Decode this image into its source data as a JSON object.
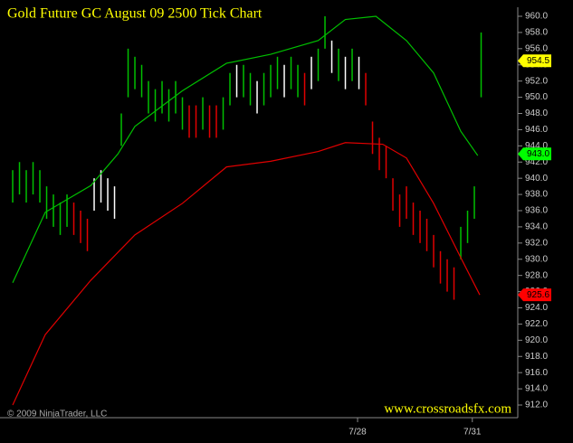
{
  "chart_data": {
    "type": "ohlc",
    "title": "Gold Future GC August 09 2500 Tick Chart",
    "copyright": "© 2009 NinjaTrader, LLC",
    "watermark": "www.crossroadsfx.com",
    "xlim": [
      -1.87,
      74.13
    ],
    "xticks": [
      {
        "value": 50.8,
        "label": "7/28"
      },
      {
        "value": 67.7,
        "label": "7/31"
      }
    ],
    "ylim": [
      911,
      961
    ],
    "yticks": [
      {
        "value": 912,
        "label": "912.0"
      },
      {
        "value": 914,
        "label": "914.0"
      },
      {
        "value": 916,
        "label": "916.0"
      },
      {
        "value": 918,
        "label": "918.0"
      },
      {
        "value": 920,
        "label": "920.0"
      },
      {
        "value": 922,
        "label": "922.0"
      },
      {
        "value": 924,
        "label": "924.0"
      },
      {
        "value": 926,
        "label": "926.0"
      },
      {
        "value": 928,
        "label": "928.0"
      },
      {
        "value": 930,
        "label": "930.0"
      },
      {
        "value": 932,
        "label": "932.0"
      },
      {
        "value": 934,
        "label": "934.0"
      },
      {
        "value": 936,
        "label": "936.0"
      },
      {
        "value": 938,
        "label": "938.0"
      },
      {
        "value": 940,
        "label": "940.0"
      },
      {
        "value": 942,
        "label": "942.0"
      },
      {
        "value": 944,
        "label": "944.0"
      },
      {
        "value": 946,
        "label": "946.0"
      },
      {
        "value": 948,
        "label": "948.0"
      },
      {
        "value": 950,
        "label": "950.0"
      },
      {
        "value": 952,
        "label": "952.0"
      },
      {
        "value": 954,
        "label": "954.0"
      },
      {
        "value": 956,
        "label": "956.0"
      },
      {
        "value": 958,
        "label": "958.0"
      },
      {
        "value": 960,
        "label": "960.0"
      }
    ],
    "bars": {
      "high": [
        941,
        942,
        941,
        942,
        941,
        939,
        938,
        937,
        938,
        937,
        936,
        935,
        940,
        941,
        940,
        939,
        948,
        956,
        955,
        954,
        952,
        951,
        952,
        951,
        952,
        950,
        949,
        949,
        950,
        949,
        949,
        950,
        953,
        954,
        954,
        953,
        952,
        953,
        954,
        955,
        954,
        955,
        954,
        953,
        955,
        956,
        960,
        957,
        956,
        955,
        956,
        955,
        953,
        947,
        945,
        944,
        940,
        938,
        939,
        937,
        936,
        935,
        933,
        931,
        930,
        929,
        934,
        936,
        939,
        958
      ],
      "low": [
        937,
        938,
        937,
        938,
        937,
        935,
        934,
        933,
        934,
        933,
        932,
        931,
        936,
        937,
        936,
        935,
        944,
        950,
        951,
        950,
        948,
        947,
        948,
        947,
        948,
        946,
        945,
        945,
        946,
        945,
        945,
        946,
        949,
        950,
        950,
        949,
        948,
        949,
        950,
        951,
        950,
        951,
        950,
        949,
        951,
        952,
        956,
        953,
        952,
        951,
        952,
        951,
        949,
        943,
        941,
        940,
        936,
        934,
        935,
        933,
        932,
        931,
        929,
        927,
        926,
        925,
        930,
        932,
        935,
        950
      ],
      "colors": [
        "#00c000",
        "#00c000",
        "#00c000",
        "#00c000",
        "#00c000",
        "#00c000",
        "#00c000",
        "#00c000",
        "#00c000",
        "#e00000",
        "#e00000",
        "#e00000",
        "#ffffff",
        "#ffffff",
        "#ffffff",
        "#ffffff",
        "#00c000",
        "#00c000",
        "#00c000",
        "#00c000",
        "#00c000",
        "#00c000",
        "#00c000",
        "#00c000",
        "#00c000",
        "#00c000",
        "#e00000",
        "#e00000",
        "#00c000",
        "#e00000",
        "#e00000",
        "#00c000",
        "#00c000",
        "#ffffff",
        "#00c000",
        "#00c000",
        "#ffffff",
        "#00c000",
        "#00c000",
        "#00c000",
        "#ffffff",
        "#00c000",
        "#00c000",
        "#e00000",
        "#ffffff",
        "#00c000",
        "#00c000",
        "#ffffff",
        "#00c000",
        "#ffffff",
        "#00c000",
        "#ffffff",
        "#e00000",
        "#e00000",
        "#e00000",
        "#e00000",
        "#e00000",
        "#e00000",
        "#e00000",
        "#e00000",
        "#e00000",
        "#e00000",
        "#e00000",
        "#e00000",
        "#e00000",
        "#e00000",
        "#00c000",
        "#00c000",
        "#00c000",
        "#00c000"
      ]
    },
    "series": [
      {
        "color": "#00c000",
        "x": [
          0,
          4.8,
          11.5,
          15.5,
          18,
          25,
          31.5,
          38,
          45,
          49,
          53.5,
          58,
          62,
          66,
          68.5
        ],
        "values": [
          927.1,
          935.8,
          939.1,
          943,
          946.4,
          950.8,
          954.2,
          955.3,
          957,
          959.6,
          960,
          957,
          953,
          945.8,
          942.8
        ]
      },
      {
        "color": "#e00000",
        "x": [
          0,
          4.8,
          11.5,
          18,
          25,
          31.5,
          38,
          45,
          49,
          54.5,
          58,
          62,
          66,
          68.8
        ],
        "values": [
          912,
          920.7,
          927.4,
          933,
          936.9,
          941.4,
          942.1,
          943.3,
          944.4,
          944.2,
          942.5,
          936.9,
          930.2,
          925.6
        ]
      }
    ],
    "badges": [
      {
        "value": 954.5,
        "label": "954.5",
        "color": "#ffff00"
      },
      {
        "value": 943,
        "label": "943.0",
        "color": "#00ff00"
      },
      {
        "value": 925.6,
        "label": "925.6",
        "color": "#ff0000"
      }
    ]
  }
}
